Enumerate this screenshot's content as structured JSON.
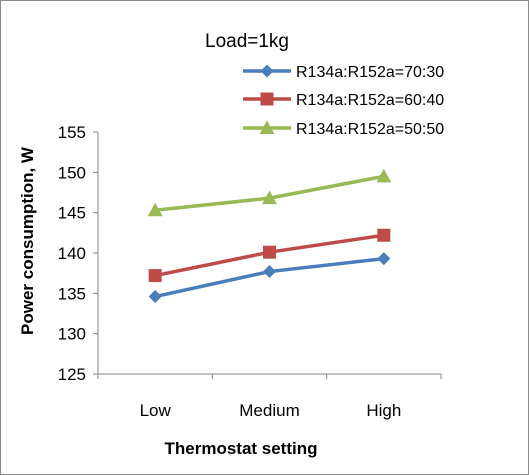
{
  "chart_data": {
    "type": "line",
    "annotation": "Load=1kg",
    "xlabel": "Thermostat setting",
    "ylabel": "Power consumption, W",
    "categories": [
      "Low",
      "Medium",
      "High"
    ],
    "ylim": [
      125,
      155
    ],
    "yticks": [
      125,
      130,
      135,
      140,
      145,
      150,
      155
    ],
    "grid": false,
    "legend_position": "top-right",
    "series": [
      {
        "name": "R134a:R152a=70:30",
        "values": [
          134.6,
          137.7,
          139.3
        ],
        "color": "#4a7ebb",
        "marker": "diamond"
      },
      {
        "name": "R134a:R152a=60:40",
        "values": [
          137.2,
          140.1,
          142.2
        ],
        "color": "#be4b48",
        "marker": "square"
      },
      {
        "name": "R134a:R152a=50:50",
        "values": [
          145.3,
          146.8,
          149.5
        ],
        "color": "#98b954",
        "marker": "triangle"
      }
    ]
  }
}
